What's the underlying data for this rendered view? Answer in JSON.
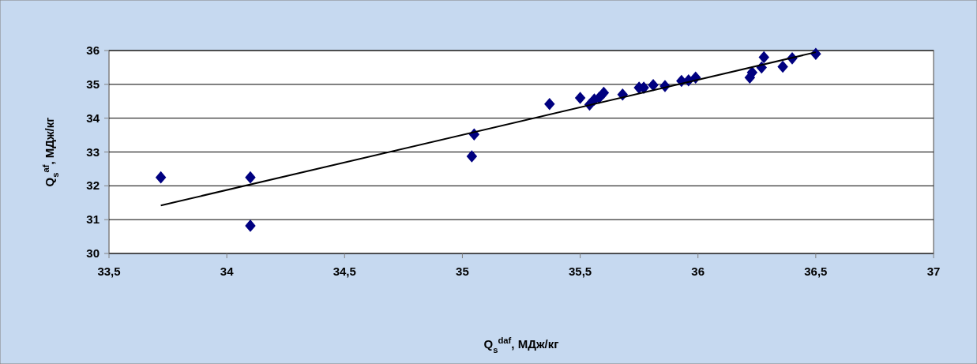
{
  "chart_data": {
    "type": "scatter",
    "xlabel": "Q$_{s}$$^{daf}$, МДж/кг",
    "ylabel": "Q$_{s}$$^{af}$, МДж/кг",
    "xlim": [
      33.5,
      37
    ],
    "xticks": [
      {
        "value": 33.5,
        "label": "33,5"
      },
      34,
      {
        "value": 34.5,
        "label": "34,5"
      },
      35,
      {
        "value": 35.5,
        "label": "35,5"
      },
      36,
      {
        "value": 36.5,
        "label": "36,5"
      },
      37
    ],
    "ylim": [
      30,
      36
    ],
    "yticks": [
      30,
      31,
      32,
      33,
      34,
      35,
      36
    ],
    "grid": "y",
    "marker": "diamond",
    "series": [
      {
        "color": "#000080",
        "x": [
          33.72,
          34.1,
          34.1,
          35.04,
          35.05,
          35.37,
          35.5,
          35.54,
          35.56,
          35.58,
          35.6,
          35.68,
          35.74,
          35.75,
          35.76,
          35.77,
          35.81,
          35.86,
          35.92,
          35.93,
          35.96,
          35.98,
          35.99,
          36.22,
          36.23,
          36.27,
          36.28,
          36.36,
          36.4,
          36.5
        ],
        "values": [
          32.25,
          32.25,
          30.82,
          32.87,
          33.52,
          34.42,
          34.6,
          34.4,
          34.55,
          34.6,
          34.75,
          34.7,
          null,
          34.9,
          null,
          34.9,
          34.98,
          34.95,
          null,
          35.1,
          35.12,
          null,
          35.2,
          35.2,
          35.35,
          35.5,
          35.8,
          35.52,
          35.77,
          35.9
        ]
      },
      {
        "type": "line",
        "color": "#000000",
        "marker": "none",
        "x": [
          33.72,
          36.5
        ],
        "values": [
          31.42,
          35.95
        ]
      }
    ]
  }
}
